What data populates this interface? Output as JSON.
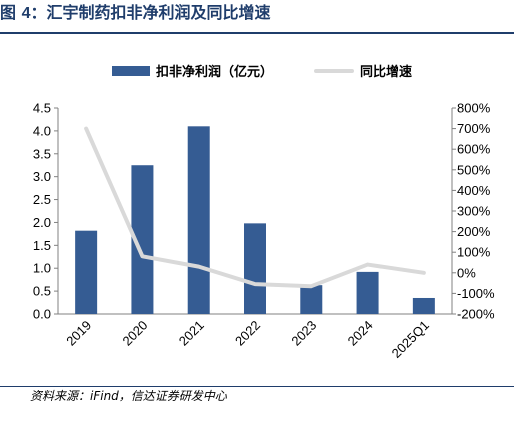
{
  "title": {
    "prefix": "图 ",
    "number": "4",
    "text": "：汇宇制药扣非净利润及同比增速"
  },
  "source": "资料来源：iFind，信达证券研发中心",
  "chart_data": {
    "type": "bar+line",
    "categories": [
      "2019",
      "2020",
      "2021",
      "2022",
      "2023",
      "2024",
      "2025Q1"
    ],
    "series": [
      {
        "name": "扣非净利润（亿元）",
        "type": "bar",
        "axis": "left",
        "color": "#355c93",
        "values": [
          1.82,
          3.25,
          4.1,
          1.98,
          0.63,
          0.92,
          0.35
        ]
      },
      {
        "name": "同比增速",
        "type": "line",
        "axis": "right",
        "color": "#d9d9d9",
        "values": [
          700,
          80,
          30,
          -55,
          -65,
          40,
          0
        ]
      }
    ],
    "y_left": {
      "min": 0,
      "max": 4.5,
      "ticks": [
        "0.0",
        "0.5",
        "1.0",
        "1.5",
        "2.0",
        "2.5",
        "3.0",
        "3.5",
        "4.0",
        "4.5"
      ]
    },
    "y_right": {
      "min": -200,
      "max": 800,
      "ticks": [
        "-200%",
        "-100%",
        "0%",
        "100%",
        "200%",
        "300%",
        "400%",
        "500%",
        "600%",
        "700%",
        "800%"
      ]
    },
    "grid": false,
    "legend_position": "top"
  }
}
